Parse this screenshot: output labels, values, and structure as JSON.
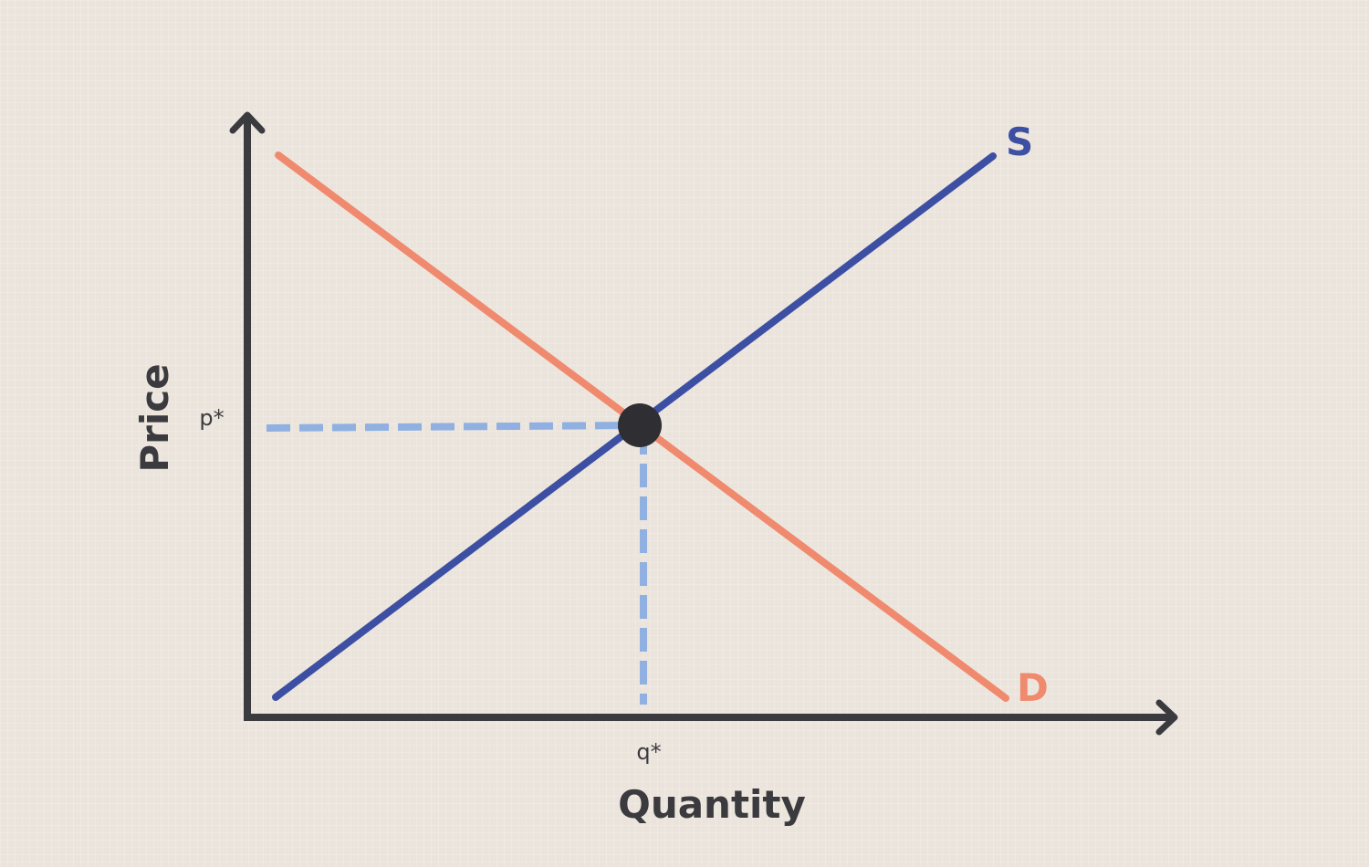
{
  "diagram": {
    "x_axis_label": "Quantity",
    "y_axis_label": "Price",
    "equilibrium": {
      "quantity_label": "q*",
      "price_label": "p*"
    },
    "curves": [
      {
        "id": "supply",
        "label": "S",
        "color": "#3d4fa3"
      },
      {
        "id": "demand",
        "label": "D",
        "color": "#f08a6e"
      }
    ],
    "colors": {
      "axis": "#3b3b3f",
      "guide": "#8fb0e0",
      "point": "#2e2e33",
      "background": "#ebe4dc"
    }
  }
}
